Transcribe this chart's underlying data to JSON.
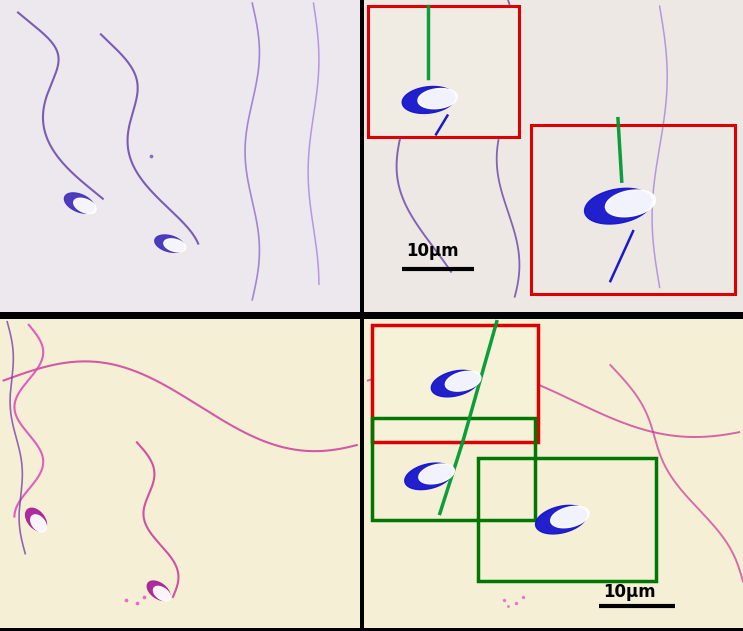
{
  "fig_width": 7.43,
  "fig_height": 6.31,
  "dpi": 100,
  "background_color": "#000000",
  "top_left_bg": "#ede8ee",
  "top_right_bg": "#ede8e4",
  "bottom_left_bg": "#f5f0d5",
  "bottom_right_bg": "#f5f0d5",
  "scale_bar_text": "10μm",
  "red_color": "#dd0000",
  "green_color": "#007700",
  "blue_sperm": "#1515cc",
  "green_tail": "#009933",
  "sperm_purple": "#6644aa",
  "sperm_blue": "#4433bb",
  "sperm_pink": "#cc3399",
  "sperm_pink2": "#dd44bb"
}
